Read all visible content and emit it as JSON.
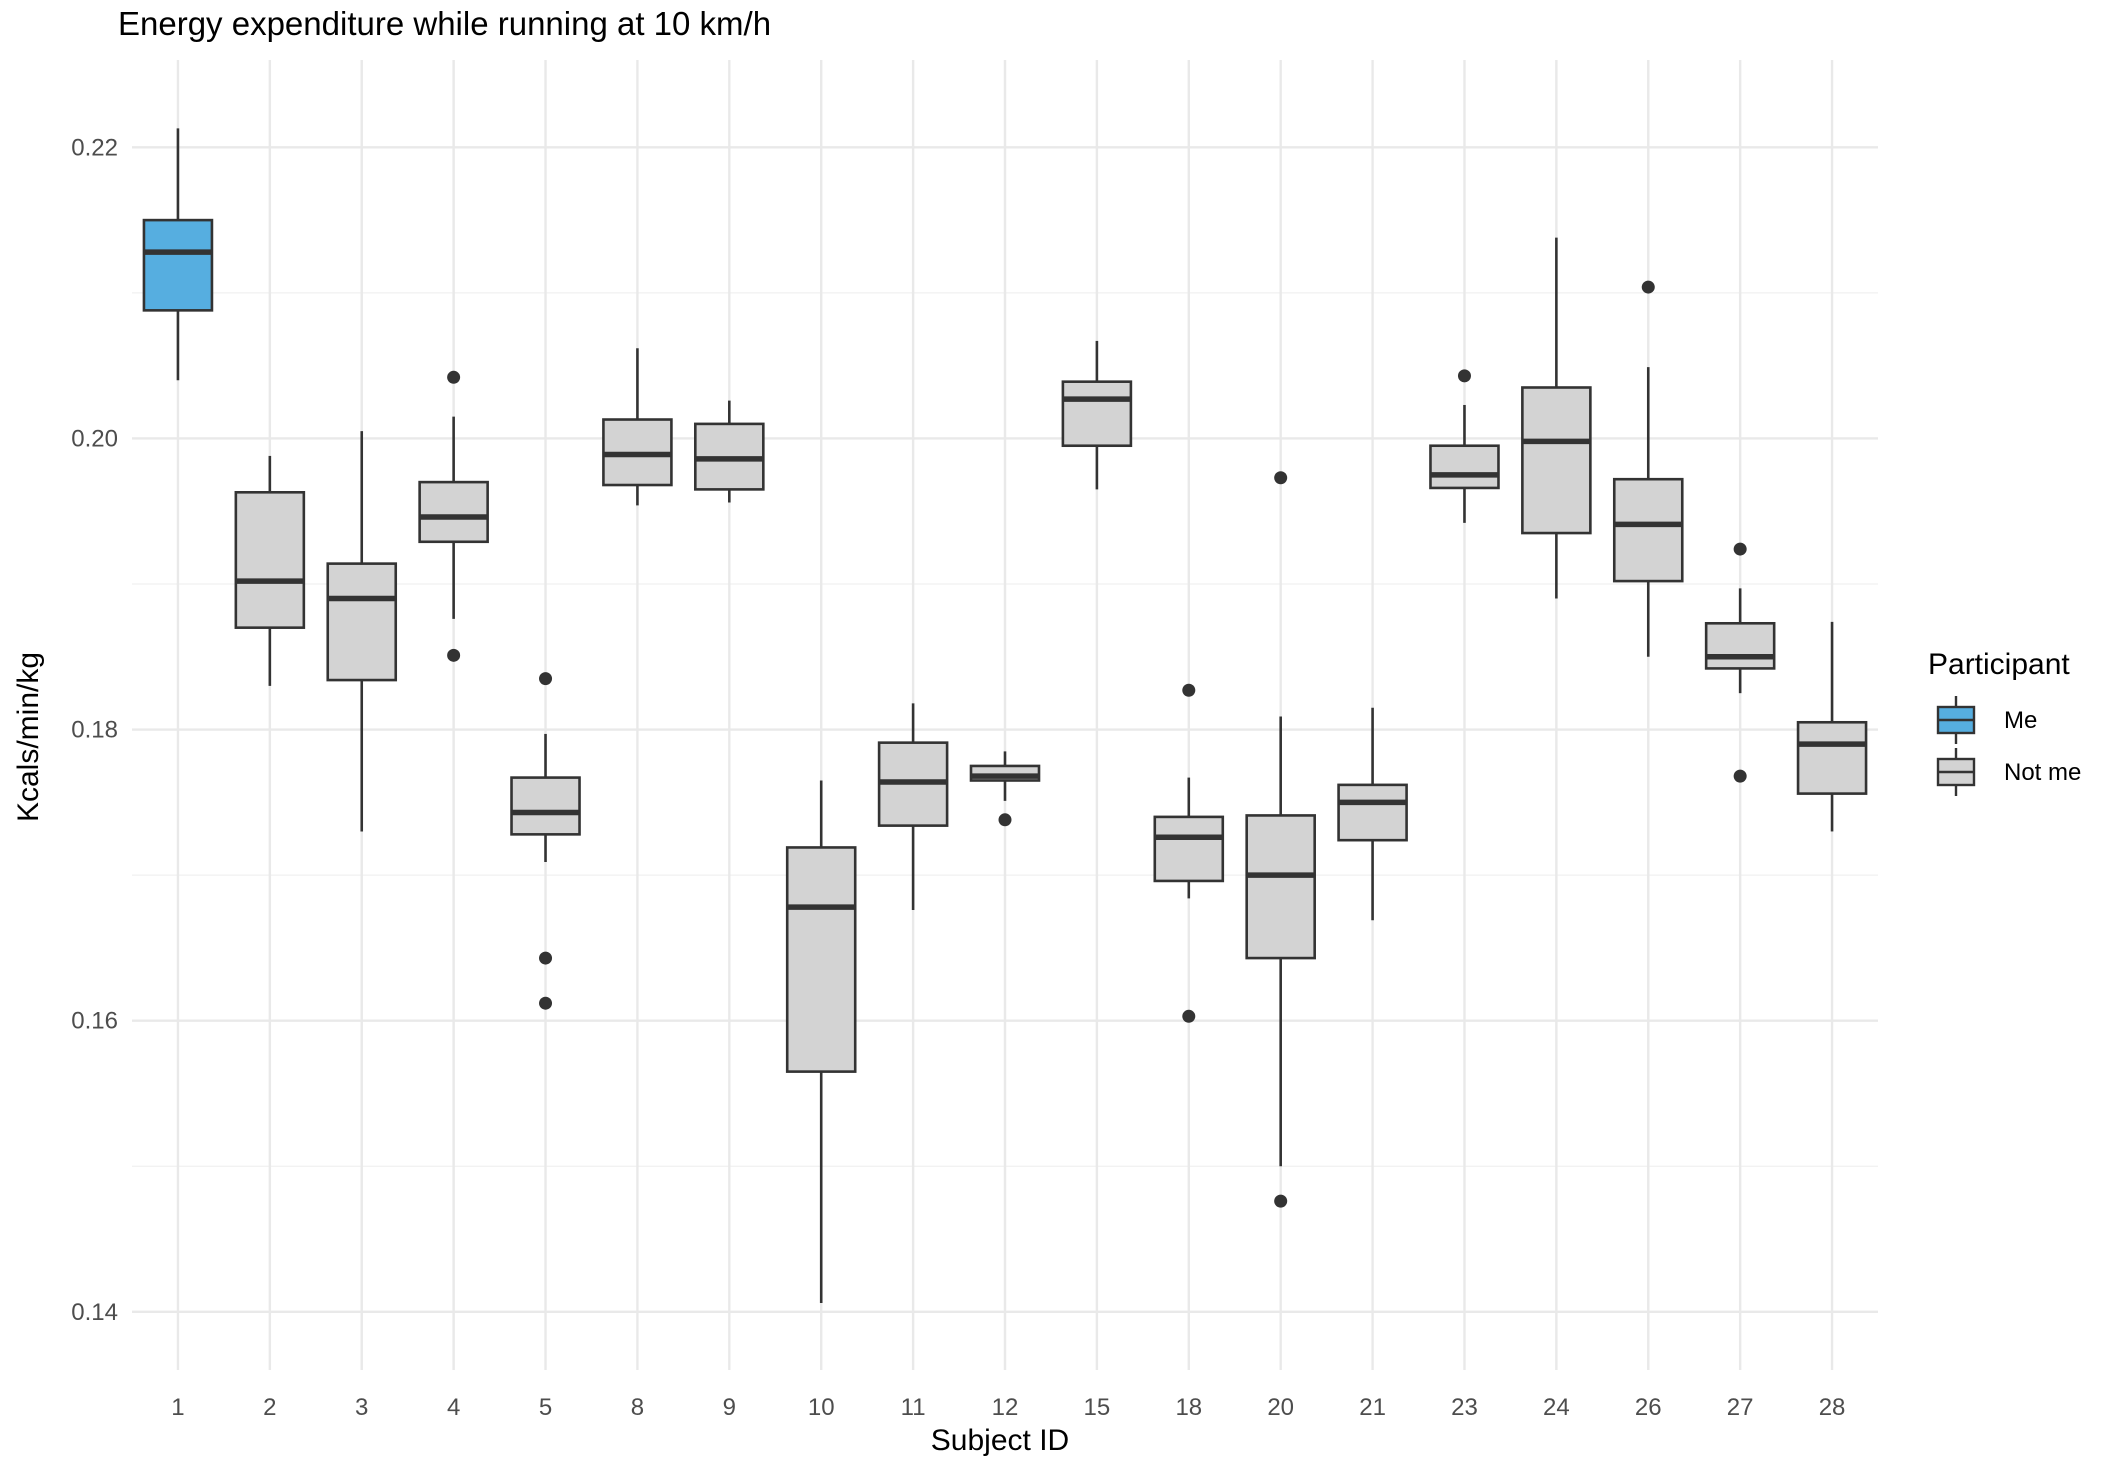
{
  "chart_data": {
    "type": "boxplot",
    "title": "Energy expenditure while running at 10 km/h",
    "xlabel": "Subject ID",
    "ylabel": "Kcals/min/kg",
    "ylim": [
      0.136,
      0.226
    ],
    "y_ticks": [
      "0.14",
      "0.16",
      "0.18",
      "0.20",
      "0.22"
    ],
    "grid": true,
    "legend": {
      "title": "Participant",
      "position": "right",
      "entries": [
        {
          "label": "Me",
          "color": "#56aee0"
        },
        {
          "label": "Not me",
          "color": "#d3d3d3"
        }
      ]
    },
    "categories": [
      "1",
      "2",
      "3",
      "4",
      "5",
      "8",
      "9",
      "10",
      "11",
      "12",
      "15",
      "18",
      "20",
      "21",
      "23",
      "24",
      "26",
      "27",
      "28"
    ],
    "boxes": [
      {
        "id": "1",
        "group": "Me",
        "whisker_low": 0.204,
        "q1": 0.2088,
        "median": 0.2128,
        "q3": 0.215,
        "whisker_high": 0.2213,
        "outliers": []
      },
      {
        "id": "2",
        "group": "Not me",
        "whisker_low": 0.183,
        "q1": 0.187,
        "median": 0.1902,
        "q3": 0.1963,
        "whisker_high": 0.1988,
        "outliers": []
      },
      {
        "id": "3",
        "group": "Not me",
        "whisker_low": 0.173,
        "q1": 0.1834,
        "median": 0.189,
        "q3": 0.1914,
        "whisker_high": 0.2005,
        "outliers": []
      },
      {
        "id": "4",
        "group": "Not me",
        "whisker_low": 0.1876,
        "q1": 0.1929,
        "median": 0.1946,
        "q3": 0.197,
        "whisker_high": 0.2015,
        "outliers": [
          0.2042,
          0.1851
        ]
      },
      {
        "id": "5",
        "group": "Not me",
        "whisker_low": 0.1709,
        "q1": 0.1728,
        "median": 0.1743,
        "q3": 0.1767,
        "whisker_high": 0.1797,
        "outliers": [
          0.1835,
          0.1643,
          0.1612
        ]
      },
      {
        "id": "8",
        "group": "Not me",
        "whisker_low": 0.1954,
        "q1": 0.1968,
        "median": 0.1989,
        "q3": 0.2013,
        "whisker_high": 0.2062,
        "outliers": []
      },
      {
        "id": "9",
        "group": "Not me",
        "whisker_low": 0.1956,
        "q1": 0.1965,
        "median": 0.1986,
        "q3": 0.201,
        "whisker_high": 0.2026,
        "outliers": []
      },
      {
        "id": "10",
        "group": "Not me",
        "whisker_low": 0.1406,
        "q1": 0.1565,
        "median": 0.1678,
        "q3": 0.1719,
        "whisker_high": 0.1765,
        "outliers": []
      },
      {
        "id": "11",
        "group": "Not me",
        "whisker_low": 0.1676,
        "q1": 0.1734,
        "median": 0.1764,
        "q3": 0.1791,
        "whisker_high": 0.1818,
        "outliers": []
      },
      {
        "id": "12",
        "group": "Not me",
        "whisker_low": 0.1751,
        "q1": 0.1765,
        "median": 0.1768,
        "q3": 0.1775,
        "whisker_high": 0.1785,
        "outliers": [
          0.1738
        ]
      },
      {
        "id": "15",
        "group": "Not me",
        "whisker_low": 0.1965,
        "q1": 0.1995,
        "median": 0.2027,
        "q3": 0.2039,
        "whisker_high": 0.2067,
        "outliers": []
      },
      {
        "id": "18",
        "group": "Not me",
        "whisker_low": 0.1684,
        "q1": 0.1696,
        "median": 0.1726,
        "q3": 0.174,
        "whisker_high": 0.1767,
        "outliers": [
          0.1827,
          0.1603
        ]
      },
      {
        "id": "20",
        "group": "Not me",
        "whisker_low": 0.15,
        "q1": 0.1643,
        "median": 0.17,
        "q3": 0.1741,
        "whisker_high": 0.1809,
        "outliers": [
          0.1973,
          0.1476
        ]
      },
      {
        "id": "21",
        "group": "Not me",
        "whisker_low": 0.1669,
        "q1": 0.1724,
        "median": 0.175,
        "q3": 0.1762,
        "whisker_high": 0.1815,
        "outliers": []
      },
      {
        "id": "23",
        "group": "Not me",
        "whisker_low": 0.1942,
        "q1": 0.1966,
        "median": 0.1975,
        "q3": 0.1995,
        "whisker_high": 0.2023,
        "outliers": [
          0.2043
        ]
      },
      {
        "id": "24",
        "group": "Not me",
        "whisker_low": 0.189,
        "q1": 0.1935,
        "median": 0.1998,
        "q3": 0.2035,
        "whisker_high": 0.2138,
        "outliers": []
      },
      {
        "id": "26",
        "group": "Not me",
        "whisker_low": 0.185,
        "q1": 0.1902,
        "median": 0.1941,
        "q3": 0.1972,
        "whisker_high": 0.2049,
        "outliers": [
          0.2104
        ]
      },
      {
        "id": "27",
        "group": "Not me",
        "whisker_low": 0.1825,
        "q1": 0.1842,
        "median": 0.185,
        "q3": 0.1873,
        "whisker_high": 0.1897,
        "outliers": [
          0.1924,
          0.1768
        ]
      },
      {
        "id": "28",
        "group": "Not me",
        "whisker_low": 0.173,
        "q1": 0.1756,
        "median": 0.179,
        "q3": 0.1805,
        "whisker_high": 0.1874,
        "outliers": []
      }
    ]
  }
}
